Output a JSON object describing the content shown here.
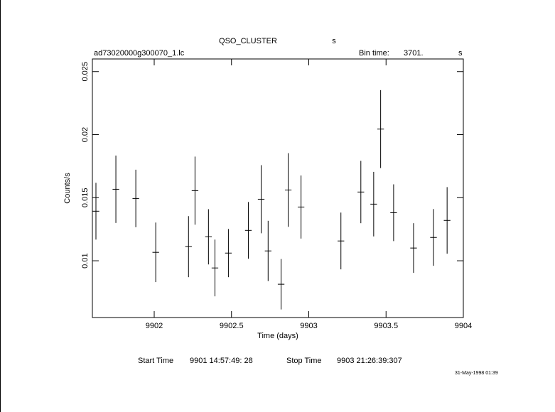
{
  "chart_data": {
    "type": "errorbar",
    "title": "QSO_CLUSTER",
    "title_unit": "s",
    "file": "ad73020000g300070_1.lc",
    "bin_time_label": "Bin time:",
    "bin_time": "3701.",
    "bin_time_unit": "s",
    "xlabel": "Time (days)",
    "ylabel": "Counts/s",
    "start_time_label": "Start Time",
    "start_time": "9901 14:57:49: 28",
    "stop_time_label": "Stop Time",
    "stop_time": "9903 21:26:39:307",
    "timestamp": "31-May-1998 01:39",
    "x": [
      9901.623,
      9901.752,
      9901.881,
      9902.01,
      9902.222,
      9902.264,
      9902.351,
      9902.393,
      9902.48,
      9902.609,
      9902.692,
      9902.737,
      9902.821,
      9902.867,
      9902.95,
      9903.208,
      9903.337,
      9903.42,
      9903.465,
      9903.549,
      9903.678,
      9903.807,
      9903.895
    ],
    "x_error": 0.0214,
    "series": [
      {
        "color": "#000000",
        "values": [
          0.01393,
          0.01567,
          0.01494,
          0.01067,
          0.01112,
          0.01556,
          0.0119,
          0.00943,
          0.01061,
          0.01241,
          0.01488,
          0.01078,
          0.00814,
          0.01561,
          0.01426,
          0.01157,
          0.01545,
          0.01449,
          0.02044,
          0.01381,
          0.01101,
          0.01185,
          0.0132
        ],
        "errors": [
          0.00225,
          0.00267,
          0.00228,
          0.00236,
          0.00242,
          0.0027,
          0.00219,
          0.00225,
          0.00191,
          0.00225,
          0.0027,
          0.00239,
          0.002,
          0.00292,
          0.0025,
          0.00225,
          0.00247,
          0.00256,
          0.00309,
          0.00225,
          0.00197,
          0.00225,
          0.00264
        ]
      }
    ],
    "xlim": [
      9901.6,
      9904.0
    ],
    "ylim": [
      0.0055,
      0.026
    ],
    "xticks": [
      9902,
      9902.5,
      9903,
      9903.5,
      9904
    ],
    "yticks": [
      0.01,
      0.015,
      0.02,
      0.025
    ]
  }
}
